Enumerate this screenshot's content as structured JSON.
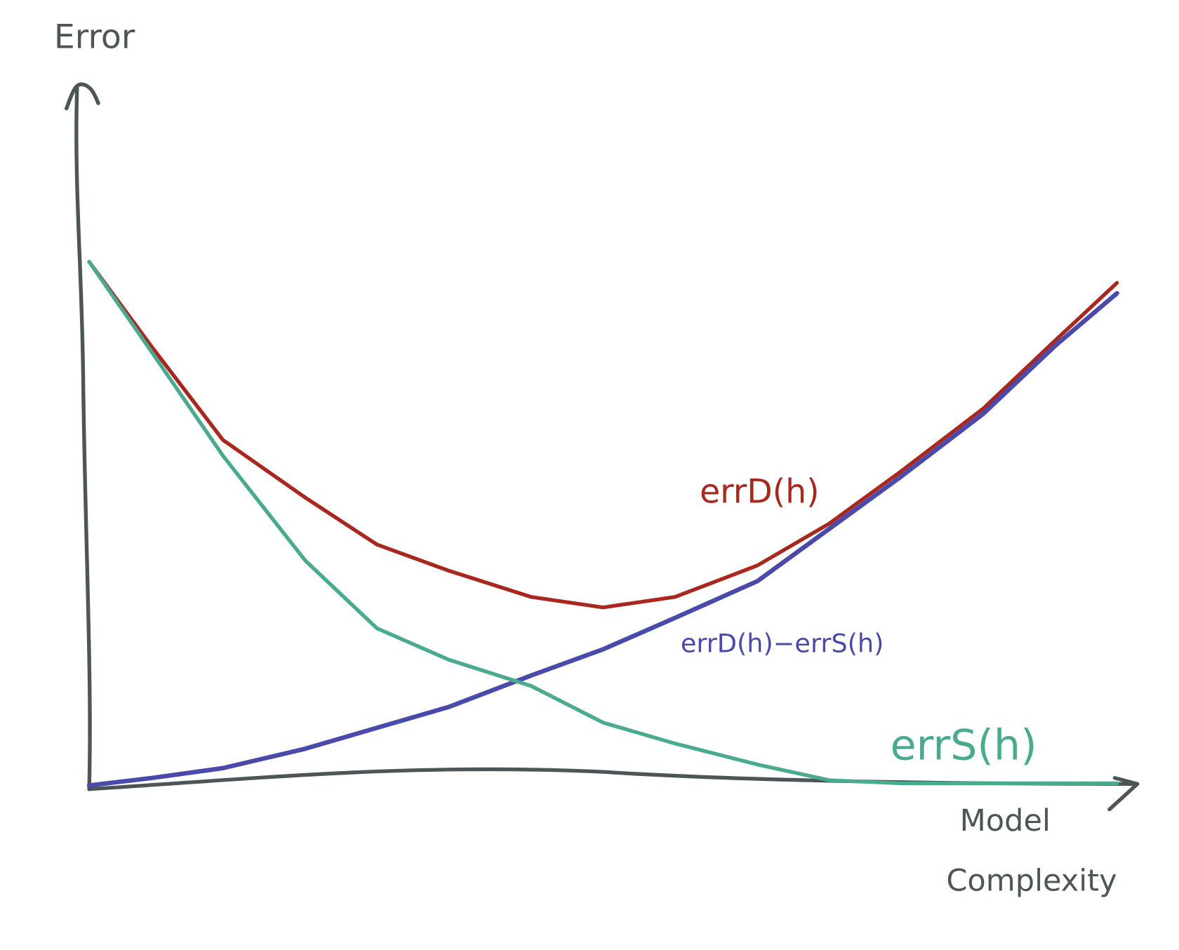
{
  "chart_data": {
    "type": "line",
    "ylabel": "Error",
    "xlabel": [
      "Model",
      "Complexity"
    ],
    "xlim": [
      0,
      100
    ],
    "ylim": [
      0,
      100
    ],
    "x": [
      0,
      6,
      13,
      21,
      28,
      35,
      43,
      50,
      57,
      65,
      72,
      79,
      87,
      94,
      100
    ],
    "series": [
      {
        "name": "errD(h)",
        "color": "#a8281f",
        "values": [
          100,
          84,
          66,
          55,
          46,
          41,
          36,
          34,
          36,
          42,
          50,
          60,
          72,
          85,
          96
        ]
      },
      {
        "name": "errD(h)−errS(h)",
        "color": "#4a4aaa",
        "values": [
          0,
          1.4,
          3.3,
          7,
          11,
          15,
          21,
          26,
          32,
          39,
          49,
          59,
          71,
          84,
          94
        ]
      },
      {
        "name": "errS(h)",
        "color": "#4aaa90",
        "values": [
          100,
          83,
          63,
          43,
          30,
          24,
          19,
          12,
          8,
          4,
          1,
          0.4,
          0.4,
          0.4,
          0.4
        ]
      }
    ]
  }
}
